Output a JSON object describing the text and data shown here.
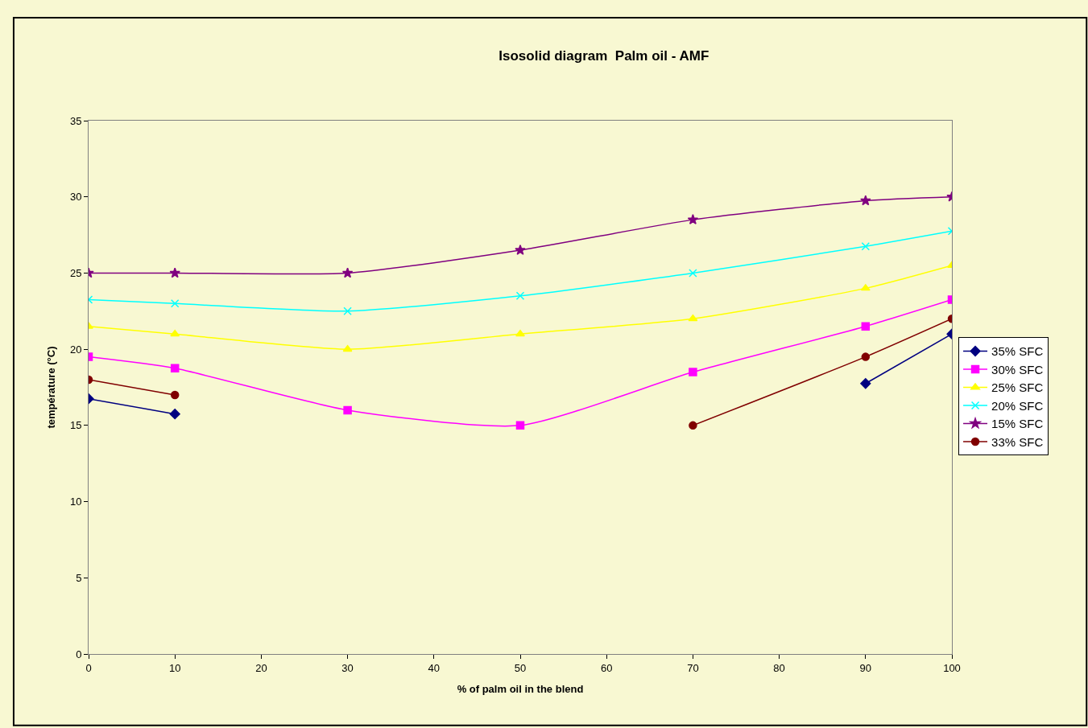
{
  "chart_data": {
    "type": "line",
    "title": "Isosolid diagram  Palm oil - AMF",
    "xlabel": "% of palm oil in the blend",
    "ylabel": "température (°C)",
    "x": [
      0,
      10,
      30,
      50,
      70,
      90,
      100
    ],
    "series": [
      {
        "name": "35% SFC",
        "color": "#000080",
        "marker": "diamond",
        "values": [
          16.75,
          15.75,
          null,
          null,
          null,
          17.75,
          21
        ]
      },
      {
        "name": "30% SFC",
        "color": "#ff00ff",
        "marker": "square",
        "values": [
          19.5,
          18.75,
          16,
          15,
          18.5,
          21.5,
          23.25
        ]
      },
      {
        "name": "25% SFC",
        "color": "#ffff00",
        "marker": "triangle",
        "values": [
          21.5,
          21,
          20,
          21,
          22,
          24,
          25.5
        ]
      },
      {
        "name": "20% SFC",
        "color": "#00ffff",
        "marker": "cross",
        "values": [
          23.25,
          23,
          22.5,
          23.5,
          25,
          26.75,
          27.75
        ]
      },
      {
        "name": "15% SFC",
        "color": "#800080",
        "marker": "star",
        "values": [
          25,
          25,
          25,
          26.5,
          28.5,
          29.75,
          30
        ]
      },
      {
        "name": "33% SFC",
        "color": "#800000",
        "marker": "circle",
        "values": [
          18,
          17,
          null,
          null,
          15,
          19.5,
          22
        ]
      }
    ],
    "xlim": [
      0,
      100
    ],
    "xticks": [
      0,
      10,
      20,
      30,
      40,
      50,
      60,
      70,
      80,
      90,
      100
    ],
    "ylim": [
      0,
      35
    ],
    "yticks": [
      0,
      5,
      10,
      15,
      20,
      25,
      30,
      35
    ],
    "grid": false,
    "legend": "right",
    "line_style": "solid"
  }
}
